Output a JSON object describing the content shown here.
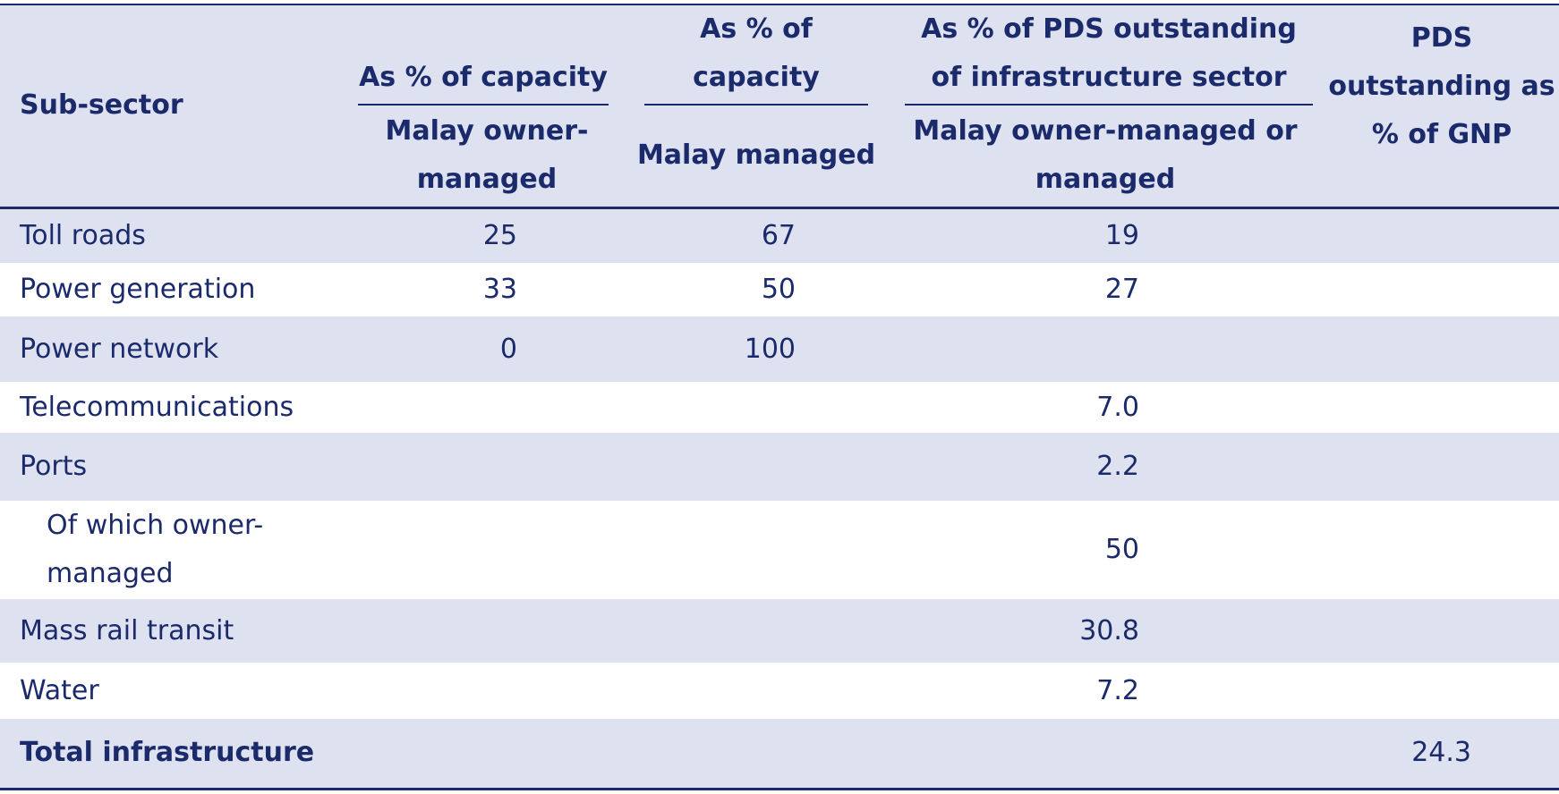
{
  "table": {
    "header": {
      "sub_sector": "Sub-sector",
      "groups": [
        "As % of capacity",
        "As % of capacity",
        "As % of PDS outstanding of infrastructure sector"
      ],
      "subheaders": [
        "Malay owner-managed",
        "Malay managed",
        "Malay owner-managed or managed"
      ],
      "last": "PDS outstanding as % of GNP"
    },
    "rows": [
      [
        "Toll roads",
        "25",
        "67",
        "19",
        null
      ],
      [
        "Power generation",
        "33",
        "50",
        "27",
        null
      ],
      [
        "Power network",
        "0",
        "100",
        null,
        null
      ],
      [
        "Telecommunications",
        null,
        null,
        "7.0",
        null
      ],
      [
        "Ports",
        null,
        null,
        "2.2",
        null
      ],
      [
        "Of which owner-managed",
        null,
        null,
        "50",
        null
      ],
      [
        "Mass rail transit",
        null,
        null,
        "30.8",
        null
      ],
      [
        "Water",
        null,
        null,
        "7.2",
        null
      ],
      [
        "Total infrastructure",
        null,
        null,
        null,
        "24.3"
      ]
    ]
  }
}
